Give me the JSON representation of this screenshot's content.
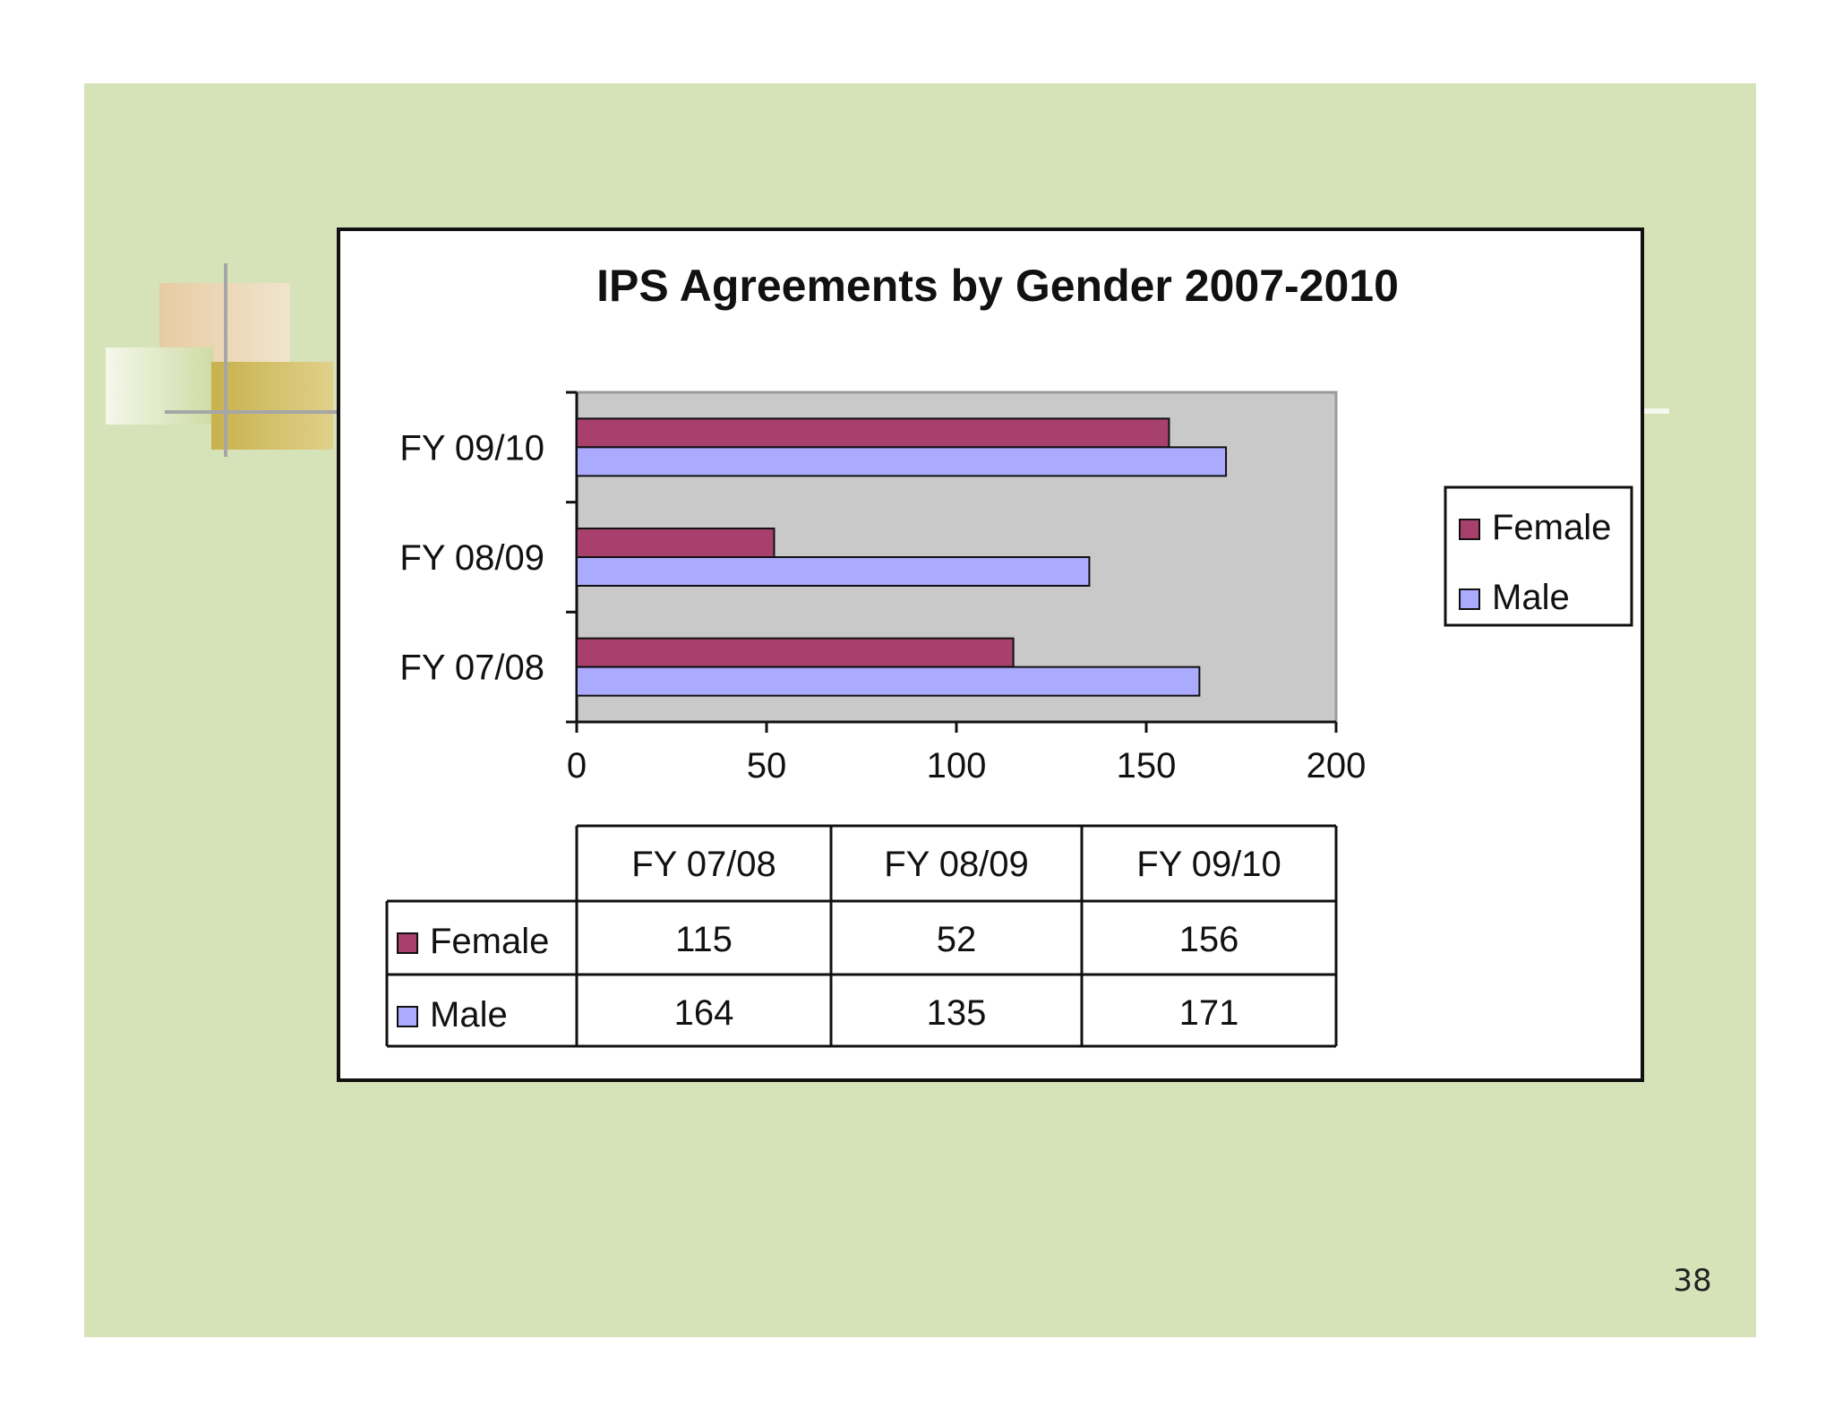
{
  "slide": {
    "page_number": "38",
    "background_color": "#d6e3b9"
  },
  "chart_data": {
    "type": "bar",
    "orientation": "horizontal",
    "title": "IPS Agreements by Gender 2007-2010",
    "categories": [
      "FY 07/08",
      "FY 08/09",
      "FY 09/10"
    ],
    "series": [
      {
        "name": "Female",
        "values": [
          115,
          52,
          156
        ],
        "color": "#a8406e"
      },
      {
        "name": "Male",
        "values": [
          164,
          135,
          171
        ],
        "color": "#aaaaff"
      }
    ],
    "xlim": [
      0,
      200
    ],
    "xticks": [
      "0",
      "50",
      "100",
      "150",
      "200"
    ],
    "plot_background": "#c9c9c9",
    "legend_position": "right",
    "data_table": {
      "headers": [
        "FY 07/08",
        "FY 08/09",
        "FY 09/10"
      ],
      "rows": [
        {
          "label": "Female",
          "values": [
            "115",
            "52",
            "156"
          ]
        },
        {
          "label": "Male",
          "values": [
            "164",
            "135",
            "171"
          ]
        }
      ]
    }
  }
}
